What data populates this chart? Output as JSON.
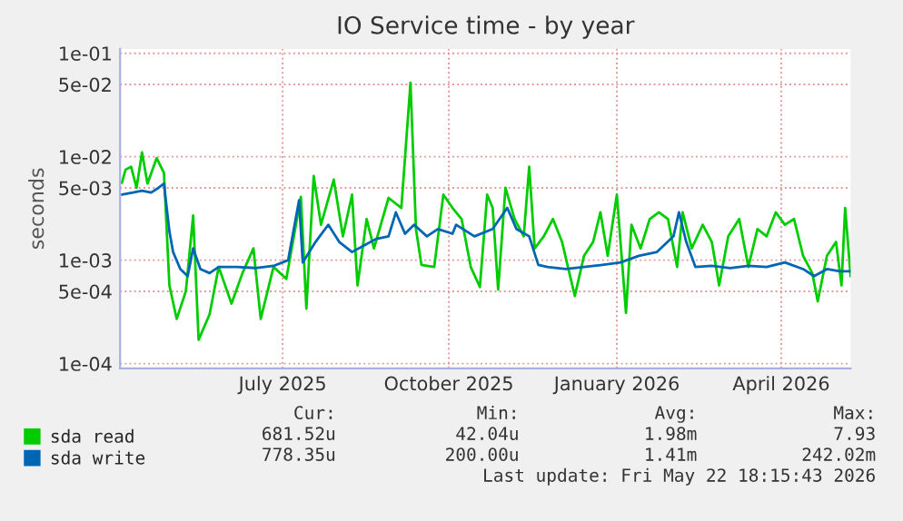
{
  "chart_data": {
    "type": "line",
    "title": "IO Service time - by year",
    "ylabel": "seconds",
    "log": "y",
    "grid": true,
    "legend": "bottom",
    "marker": "none",
    "line_style": "solid",
    "xlim": [
      "2025-04-17",
      "2026-05-22"
    ],
    "xticks": [
      {
        "value": "2025-07-15",
        "label": "July 2025"
      },
      {
        "value": "2025-10-14",
        "label": "October 2025"
      },
      {
        "value": "2026-01-14",
        "label": "January 2026"
      },
      {
        "value": "2026-04-14",
        "label": "April 2026"
      }
    ],
    "ylim": [
      9e-05,
      0.11
    ],
    "yticks": [
      {
        "value": 0.0001,
        "label": "1e-04"
      },
      {
        "value": 0.0005,
        "label": "5e-04"
      },
      {
        "value": 0.001,
        "label": "1e-03"
      },
      {
        "value": 0.005,
        "label": "5e-03"
      },
      {
        "value": 0.01,
        "label": "1e-02"
      },
      {
        "value": 0.05,
        "label": "5e-02"
      },
      {
        "value": 0.1,
        "label": "1e-01"
      }
    ],
    "series": [
      {
        "name": "sda read",
        "color": "#00cc00",
        "x": [
          "2025-04-18",
          "2025-04-20",
          "2025-04-23",
          "2025-04-26",
          "2025-04-29",
          "2025-05-02",
          "2025-05-07",
          "2025-05-11",
          "2025-05-14",
          "2025-05-18",
          "2025-05-23",
          "2025-05-27",
          "2025-05-30",
          "2025-06-05",
          "2025-06-10",
          "2025-06-17",
          "2025-06-23",
          "2025-06-29",
          "2025-07-03",
          "2025-07-10",
          "2025-07-17",
          "2025-07-25",
          "2025-07-28",
          "2025-08-01",
          "2025-08-05",
          "2025-08-12",
          "2025-08-17",
          "2025-08-22",
          "2025-08-25",
          "2025-08-30",
          "2025-09-03",
          "2025-09-11",
          "2025-09-18",
          "2025-09-23",
          "2025-09-26",
          "2025-09-29",
          "2025-10-06",
          "2025-10-11",
          "2025-10-16",
          "2025-10-21",
          "2025-10-26",
          "2025-10-31",
          "2025-11-04",
          "2025-11-07",
          "2025-11-10",
          "2025-11-14",
          "2025-11-19",
          "2025-11-24",
          "2025-11-27",
          "2025-11-30",
          "2025-12-05",
          "2025-12-10",
          "2025-12-15",
          "2025-12-19",
          "2025-12-22",
          "2025-12-27",
          "2026-01-01",
          "2026-01-05",
          "2026-01-09",
          "2026-01-14",
          "2026-01-19",
          "2026-01-22",
          "2026-01-27",
          "2026-02-01",
          "2026-02-06",
          "2026-02-11",
          "2026-02-16",
          "2026-02-19",
          "2026-02-24",
          "2026-03-02",
          "2026-03-07",
          "2026-03-11",
          "2026-03-16",
          "2026-03-22",
          "2026-03-27",
          "2026-04-01",
          "2026-04-06",
          "2026-04-11",
          "2026-04-16",
          "2026-04-21",
          "2026-04-26",
          "2026-05-01",
          "2026-05-04",
          "2026-05-09",
          "2026-05-14",
          "2026-05-17",
          "2026-05-19",
          "2026-05-22"
        ],
        "values": [
          0.0056,
          0.0075,
          0.008,
          0.005,
          0.011,
          0.0055,
          0.0097,
          0.007,
          0.00057,
          0.00027,
          0.0005,
          0.0027,
          0.00017,
          0.0003,
          0.00086,
          0.00038,
          0.00075,
          0.0013,
          0.00027,
          0.00086,
          0.00066,
          0.0041,
          0.00034,
          0.0065,
          0.0022,
          0.006,
          0.0017,
          0.0043,
          0.00057,
          0.0025,
          0.0013,
          0.004,
          0.0032,
          0.052,
          0.002,
          0.0009,
          0.00086,
          0.0043,
          0.0032,
          0.0025,
          0.00086,
          0.00055,
          0.0043,
          0.0032,
          0.00052,
          0.005,
          0.0025,
          0.0017,
          0.008,
          0.0013,
          0.0017,
          0.0025,
          0.0015,
          0.00075,
          0.00045,
          0.0011,
          0.0015,
          0.0029,
          0.0011,
          0.0043,
          0.00031,
          0.0022,
          0.0013,
          0.0025,
          0.0029,
          0.0025,
          0.00086,
          0.0029,
          0.0013,
          0.0022,
          0.0015,
          0.00057,
          0.0017,
          0.0025,
          0.00086,
          0.002,
          0.0017,
          0.0029,
          0.0022,
          0.0025,
          0.0011,
          0.00075,
          0.0004,
          0.0011,
          0.0015,
          0.00057,
          0.0032,
          0.0007
        ]
      },
      {
        "name": "sda write",
        "color": "#0066b3",
        "x": [
          "2025-04-18",
          "2025-04-24",
          "2025-04-29",
          "2025-05-04",
          "2025-05-08",
          "2025-05-11",
          "2025-05-14",
          "2025-05-16",
          "2025-05-20",
          "2025-05-24",
          "2025-05-27",
          "2025-05-31",
          "2025-06-05",
          "2025-06-10",
          "2025-06-20",
          "2025-06-30",
          "2025-07-10",
          "2025-07-18",
          "2025-07-24",
          "2025-07-26",
          "2025-08-02",
          "2025-08-09",
          "2025-08-15",
          "2025-08-22",
          "2025-08-29",
          "2025-09-04",
          "2025-09-11",
          "2025-09-15",
          "2025-09-20",
          "2025-09-25",
          "2025-10-02",
          "2025-10-08",
          "2025-10-16",
          "2025-10-18",
          "2025-10-28",
          "2025-11-07",
          "2025-11-15",
          "2025-11-20",
          "2025-11-27",
          "2025-12-02",
          "2025-12-07",
          "2025-12-17",
          "2025-12-27",
          "2026-01-06",
          "2026-01-16",
          "2026-01-26",
          "2026-02-05",
          "2026-02-14",
          "2026-02-17",
          "2026-02-21",
          "2026-02-26",
          "2026-03-07",
          "2026-03-17",
          "2026-03-27",
          "2026-04-06",
          "2026-04-16",
          "2026-04-26",
          "2026-05-02",
          "2026-05-09",
          "2026-05-16",
          "2026-05-22"
        ],
        "values": [
          0.0043,
          0.0045,
          0.0047,
          0.0045,
          0.005,
          0.0055,
          0.0019,
          0.0012,
          0.00082,
          0.0007,
          0.0013,
          0.00082,
          0.00075,
          0.00086,
          0.00086,
          0.00084,
          0.00088,
          0.001,
          0.0038,
          0.00095,
          0.0015,
          0.0022,
          0.0015,
          0.0012,
          0.0014,
          0.0016,
          0.0017,
          0.0029,
          0.0018,
          0.0022,
          0.0017,
          0.002,
          0.0018,
          0.0022,
          0.0017,
          0.002,
          0.0032,
          0.002,
          0.0017,
          0.0009,
          0.00086,
          0.00082,
          0.00086,
          0.0009,
          0.00095,
          0.0011,
          0.0012,
          0.0017,
          0.0029,
          0.0015,
          0.00086,
          0.00088,
          0.00084,
          0.00088,
          0.00086,
          0.00095,
          0.00082,
          0.0007,
          0.00082,
          0.00078,
          0.00078
        ]
      }
    ],
    "annotations": [
      "Cur:",
      "Min:",
      "Avg:",
      "Max:",
      "681.52u",
      "42.04u",
      "1.98m",
      "7.93",
      "778.35u",
      "200.00u",
      "1.41m",
      "242.02m",
      "Last update: Fri May 22 18:15:43 2026"
    ]
  }
}
